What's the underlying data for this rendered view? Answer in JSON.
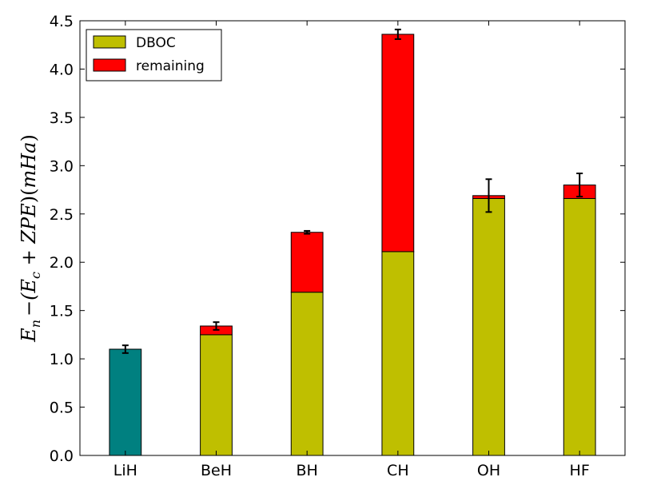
{
  "chart_data": {
    "type": "bar",
    "stacked": true,
    "title": "",
    "xlabel": "",
    "ylabel": "E_n − (E_c + ZPE)(mHa)",
    "ylabel_parts": {
      "e": "E",
      "n": "n",
      "dash": "−(",
      "e2": "E",
      "c": "c",
      "plus": " + ",
      "zpe": "ZPE",
      "close": ")(",
      "mha": "mHa",
      "end": ")"
    },
    "ylim": [
      0,
      4.5
    ],
    "yticks": [
      0.0,
      0.5,
      1.0,
      1.5,
      2.0,
      2.5,
      3.0,
      3.5,
      4.0,
      4.5
    ],
    "ytick_labels": [
      "0.0",
      "0.5",
      "1.0",
      "1.5",
      "2.0",
      "2.5",
      "3.0",
      "3.5",
      "4.0",
      "4.5"
    ],
    "categories": [
      "LiH",
      "BeH",
      "BH",
      "CH",
      "OH",
      "HF"
    ],
    "series": [
      {
        "name": "DBOC",
        "color": "#bfbf00",
        "values": [
          1.1,
          1.25,
          1.69,
          2.11,
          2.66,
          2.66
        ]
      },
      {
        "name": "remaining",
        "color": "#ff0000",
        "values": [
          0.0,
          0.09,
          0.62,
          2.25,
          0.03,
          0.14
        ]
      }
    ],
    "special_colors": {
      "LiH": "#008080"
    },
    "totals": [
      1.1,
      1.34,
      2.31,
      4.36,
      2.69,
      2.8
    ],
    "error_bars": [
      0.04,
      0.04,
      0.015,
      0.05,
      0.17,
      0.12
    ],
    "grid": false,
    "legend_position": "top-left"
  }
}
